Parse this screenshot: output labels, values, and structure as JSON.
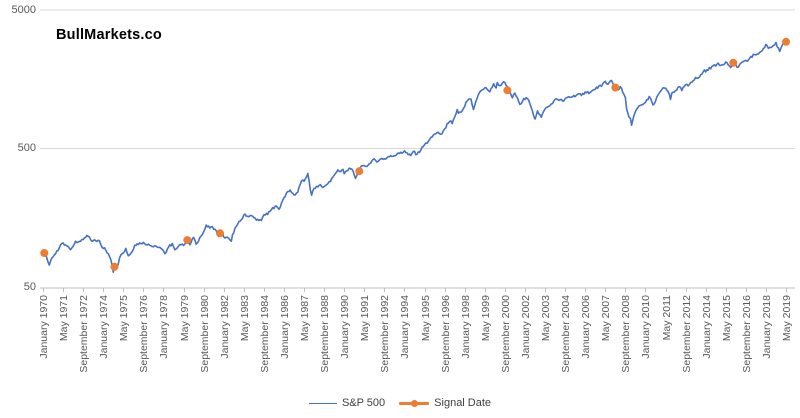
{
  "header": {
    "watermark": "BullMarkets.co"
  },
  "chart_data": {
    "type": "line",
    "title": "BullMarkets.co",
    "grid": "horizontal-only",
    "colors": {
      "sp500_line": "#4472C4",
      "signal_marker": "#ED7D31",
      "gridline": "#D9D9D9",
      "axis": "#BFBFBF",
      "tick_text": "#595959",
      "legend_text": "#404040"
    },
    "y_axis": {
      "scale": "log",
      "ticks": [
        50,
        500,
        5000
      ],
      "tick_labels": [
        "50",
        "500",
        "5000"
      ],
      "ylim": [
        50,
        5000
      ]
    },
    "x_axis": {
      "start": "1970-01",
      "end": "2019-05",
      "tick_interval_months": 16,
      "tick_labels": [
        "January 1970",
        "May 1971",
        "September 1972",
        "January 1974",
        "May 1975",
        "September 1976",
        "January 1978",
        "May 1979",
        "September 1980",
        "January 1982",
        "May 1983",
        "September 1984",
        "January 1986",
        "May 1987",
        "September 1988",
        "January 1990",
        "May 1991",
        "September 1992",
        "January 1994",
        "May 1995",
        "September 1996",
        "January 1998",
        "May 1999",
        "September 2000",
        "January 2002",
        "May 2003",
        "September 2004",
        "January 2006",
        "May 2007",
        "September 2008",
        "January 2010",
        "May 2011",
        "September 2012",
        "January 2014",
        "May 2015",
        "September 2016",
        "January 2018",
        "May 2019"
      ]
    },
    "legend": {
      "position": "bottom",
      "entries": [
        "S&P 500",
        "Signal Date"
      ]
    },
    "series": [
      {
        "name": "S&P 500",
        "type": "line",
        "color": "#4472C4",
        "points": [
          [
            "1970-01",
            92
          ],
          [
            "1970-03",
            89
          ],
          [
            "1970-04",
            81
          ],
          [
            "1970-06",
            72
          ],
          [
            "1970-08",
            81
          ],
          [
            "1970-11",
            87
          ],
          [
            "1971-02",
            96
          ],
          [
            "1971-04",
            103
          ],
          [
            "1971-08",
            99
          ],
          [
            "1971-11",
            93
          ],
          [
            "1972-03",
            107
          ],
          [
            "1972-07",
            107
          ],
          [
            "1972-12",
            118
          ],
          [
            "1973-01",
            116
          ],
          [
            "1973-04",
            107
          ],
          [
            "1973-07",
            108
          ],
          [
            "1973-10",
            108
          ],
          [
            "1973-12",
            97
          ],
          [
            "1974-02",
            96
          ],
          [
            "1974-05",
            87
          ],
          [
            "1974-07",
            79
          ],
          [
            "1974-09",
            64
          ],
          [
            "1974-10",
            70
          ],
          [
            "1974-12",
            69
          ],
          [
            "1975-02",
            81
          ],
          [
            "1975-04",
            87
          ],
          [
            "1975-07",
            95
          ],
          [
            "1975-09",
            84
          ],
          [
            "1975-12",
            90
          ],
          [
            "1976-02",
            100
          ],
          [
            "1976-06",
            104
          ],
          [
            "1976-09",
            105
          ],
          [
            "1976-11",
            101
          ],
          [
            "1977-01",
            102
          ],
          [
            "1977-04",
            98
          ],
          [
            "1977-08",
            97
          ],
          [
            "1977-11",
            95
          ],
          [
            "1978-02",
            87
          ],
          [
            "1978-05",
            97
          ],
          [
            "1978-08",
            103
          ],
          [
            "1978-10",
            93
          ],
          [
            "1978-12",
            96
          ],
          [
            "1979-03",
            101
          ],
          [
            "1979-06",
            102
          ],
          [
            "1979-08",
            109
          ],
          [
            "1979-10",
            101
          ],
          [
            "1980-01",
            114
          ],
          [
            "1980-03",
            102
          ],
          [
            "1980-06",
            114
          ],
          [
            "1980-09",
            125
          ],
          [
            "1980-11",
            140
          ],
          [
            "1980-12",
            136
          ],
          [
            "1981-03",
            136
          ],
          [
            "1981-06",
            131
          ],
          [
            "1981-09",
            116
          ],
          [
            "1981-11",
            126
          ],
          [
            "1982-02",
            113
          ],
          [
            "1982-05",
            112
          ],
          [
            "1982-07",
            107
          ],
          [
            "1982-08",
            119
          ],
          [
            "1982-10",
            133
          ],
          [
            "1982-12",
            141
          ],
          [
            "1983-03",
            153
          ],
          [
            "1983-06",
            168
          ],
          [
            "1983-08",
            162
          ],
          [
            "1983-10",
            164
          ],
          [
            "1984-02",
            157
          ],
          [
            "1984-05",
            151
          ],
          [
            "1984-07",
            151
          ],
          [
            "1984-09",
            166
          ],
          [
            "1984-12",
            167
          ],
          [
            "1985-03",
            181
          ],
          [
            "1985-06",
            192
          ],
          [
            "1985-09",
            182
          ],
          [
            "1985-12",
            211
          ],
          [
            "1986-03",
            239
          ],
          [
            "1986-06",
            251
          ],
          [
            "1986-09",
            231
          ],
          [
            "1986-12",
            242
          ],
          [
            "1987-03",
            292
          ],
          [
            "1987-05",
            290
          ],
          [
            "1987-08",
            330
          ],
          [
            "1987-10",
            252
          ],
          [
            "1987-11",
            230
          ],
          [
            "1987-12",
            247
          ],
          [
            "1988-02",
            258
          ],
          [
            "1988-06",
            274
          ],
          [
            "1988-08",
            262
          ],
          [
            "1988-11",
            274
          ],
          [
            "1989-02",
            289
          ],
          [
            "1989-05",
            321
          ],
          [
            "1989-08",
            351
          ],
          [
            "1989-10",
            340
          ],
          [
            "1989-12",
            353
          ],
          [
            "1990-01",
            329
          ],
          [
            "1990-05",
            361
          ],
          [
            "1990-07",
            356
          ],
          [
            "1990-10",
            304
          ],
          [
            "1990-12",
            330
          ],
          [
            "1991-02",
            367
          ],
          [
            "1991-06",
            371
          ],
          [
            "1991-10",
            392
          ],
          [
            "1991-12",
            417
          ],
          [
            "1992-04",
            404
          ],
          [
            "1992-07",
            424
          ],
          [
            "1992-10",
            419
          ],
          [
            "1992-12",
            436
          ],
          [
            "1993-04",
            440
          ],
          [
            "1993-08",
            464
          ],
          [
            "1993-11",
            462
          ],
          [
            "1994-01",
            482
          ],
          [
            "1994-04",
            451
          ],
          [
            "1994-06",
            444
          ],
          [
            "1994-08",
            475
          ],
          [
            "1994-11",
            454
          ],
          [
            "1995-02",
            487
          ],
          [
            "1995-05",
            533
          ],
          [
            "1995-08",
            562
          ],
          [
            "1995-11",
            605
          ],
          [
            "1996-01",
            636
          ],
          [
            "1996-04",
            654
          ],
          [
            "1996-07",
            640
          ],
          [
            "1996-10",
            705
          ],
          [
            "1996-11",
            757
          ],
          [
            "1997-02",
            791
          ],
          [
            "1997-03",
            757
          ],
          [
            "1997-06",
            885
          ],
          [
            "1997-07",
            954
          ],
          [
            "1997-08",
            899
          ],
          [
            "1997-10",
            915
          ],
          [
            "1997-12",
            970
          ],
          [
            "1998-03",
            1102
          ],
          [
            "1998-06",
            1134
          ],
          [
            "1998-08",
            957
          ],
          [
            "1998-10",
            1099
          ],
          [
            "1998-12",
            1229
          ],
          [
            "1999-01",
            1280
          ],
          [
            "1999-04",
            1335
          ],
          [
            "1999-06",
            1373
          ],
          [
            "1999-09",
            1283
          ],
          [
            "1999-12",
            1469
          ],
          [
            "2000-02",
            1366
          ],
          [
            "2000-03",
            1499
          ],
          [
            "2000-05",
            1421
          ],
          [
            "2000-08",
            1518
          ],
          [
            "2000-10",
            1429
          ],
          [
            "2000-12",
            1320
          ],
          [
            "2001-03",
            1160
          ],
          [
            "2001-05",
            1256
          ],
          [
            "2001-09",
            1041
          ],
          [
            "2001-12",
            1148
          ],
          [
            "2002-03",
            1147
          ],
          [
            "2002-06",
            990
          ],
          [
            "2002-09",
            815
          ],
          [
            "2002-11",
            936
          ],
          [
            "2003-02",
            841
          ],
          [
            "2003-05",
            964
          ],
          [
            "2003-08",
            1008
          ],
          [
            "2003-11",
            1058
          ],
          [
            "2004-02",
            1145
          ],
          [
            "2004-05",
            1121
          ],
          [
            "2004-08",
            1104
          ],
          [
            "2004-11",
            1174
          ],
          [
            "2005-03",
            1181
          ],
          [
            "2005-07",
            1234
          ],
          [
            "2005-10",
            1207
          ],
          [
            "2006-01",
            1280
          ],
          [
            "2006-05",
            1270
          ],
          [
            "2006-09",
            1336
          ],
          [
            "2006-12",
            1418
          ],
          [
            "2007-02",
            1407
          ],
          [
            "2007-05",
            1531
          ],
          [
            "2007-07",
            1455
          ],
          [
            "2007-10",
            1549
          ],
          [
            "2007-11",
            1481
          ],
          [
            "2008-01",
            1378
          ],
          [
            "2008-03",
            1323
          ],
          [
            "2008-05",
            1400
          ],
          [
            "2008-07",
            1267
          ],
          [
            "2008-09",
            1166
          ],
          [
            "2008-10",
            969
          ],
          [
            "2008-11",
            896
          ],
          [
            "2009-01",
            826
          ],
          [
            "2009-02",
            735
          ],
          [
            "2009-04",
            873
          ],
          [
            "2009-07",
            987
          ],
          [
            "2009-10",
            1036
          ],
          [
            "2010-01",
            1074
          ],
          [
            "2010-04",
            1187
          ],
          [
            "2010-07",
            1031
          ],
          [
            "2010-08",
            1049
          ],
          [
            "2010-12",
            1258
          ],
          [
            "2011-02",
            1327
          ],
          [
            "2011-04",
            1364
          ],
          [
            "2011-07",
            1292
          ],
          [
            "2011-09",
            1131
          ],
          [
            "2011-10",
            1253
          ],
          [
            "2012-01",
            1312
          ],
          [
            "2012-04",
            1398
          ],
          [
            "2012-06",
            1310
          ],
          [
            "2012-09",
            1441
          ],
          [
            "2012-11",
            1416
          ],
          [
            "2013-01",
            1498
          ],
          [
            "2013-05",
            1631
          ],
          [
            "2013-06",
            1606
          ],
          [
            "2013-08",
            1633
          ],
          [
            "2013-12",
            1848
          ],
          [
            "2014-01",
            1783
          ],
          [
            "2014-06",
            1960
          ],
          [
            "2014-09",
            1972
          ],
          [
            "2014-11",
            2068
          ],
          [
            "2015-01",
            1995
          ],
          [
            "2015-05",
            2107
          ],
          [
            "2015-08",
            1972
          ],
          [
            "2015-09",
            1920
          ],
          [
            "2015-11",
            2080
          ],
          [
            "2016-02",
            1932
          ],
          [
            "2016-06",
            2099
          ],
          [
            "2016-10",
            2126
          ],
          [
            "2016-12",
            2239
          ],
          [
            "2017-04",
            2384
          ],
          [
            "2017-08",
            2472
          ],
          [
            "2017-12",
            2674
          ],
          [
            "2018-01",
            2824
          ],
          [
            "2018-03",
            2641
          ],
          [
            "2018-06",
            2718
          ],
          [
            "2018-09",
            2914
          ],
          [
            "2018-10",
            2712
          ],
          [
            "2018-12",
            2507
          ],
          [
            "2019-02",
            2784
          ],
          [
            "2019-05",
            2945
          ]
        ]
      },
      {
        "name": "Signal Date",
        "type": "markers",
        "color": "#ED7D31",
        "points": [
          [
            "1970-02",
            88
          ],
          [
            "1974-10",
            70
          ],
          [
            "1979-08",
            109
          ],
          [
            "1981-10",
            122
          ],
          [
            "1991-01",
            343
          ],
          [
            "2000-11",
            1315
          ],
          [
            "2008-01",
            1378
          ],
          [
            "2015-11",
            2080
          ],
          [
            "2019-05",
            2945
          ]
        ]
      }
    ]
  }
}
